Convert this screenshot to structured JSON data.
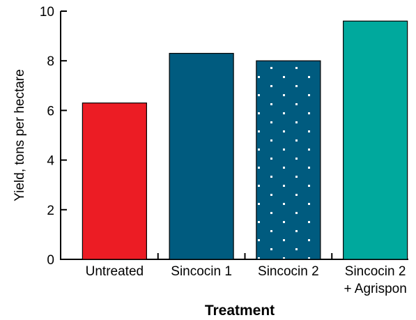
{
  "chart_data": {
    "type": "bar",
    "title": "",
    "xlabel": "Treatment",
    "ylabel": "Yield, tons per hectare",
    "ylim": [
      0,
      10
    ],
    "yticks": [
      "0",
      "2",
      "4",
      "6",
      "8",
      "10"
    ],
    "grid": false,
    "categories": [
      {
        "lines": [
          "Untreated"
        ]
      },
      {
        "lines": [
          "Sincocin 1"
        ]
      },
      {
        "lines": [
          "Sincocin 2"
        ]
      },
      {
        "lines": [
          "Sincocin 2",
          "+ Agrispon"
        ]
      }
    ],
    "values": [
      6.3,
      8.3,
      8.0,
      9.6
    ],
    "bar_colors": [
      "#ec1c24",
      "#005b7f",
      "#005b7f",
      "#00a99d"
    ],
    "bar_patterns": [
      "solid",
      "solid",
      "dotted",
      "solid"
    ],
    "pattern_dot_color": "#ffffff"
  }
}
